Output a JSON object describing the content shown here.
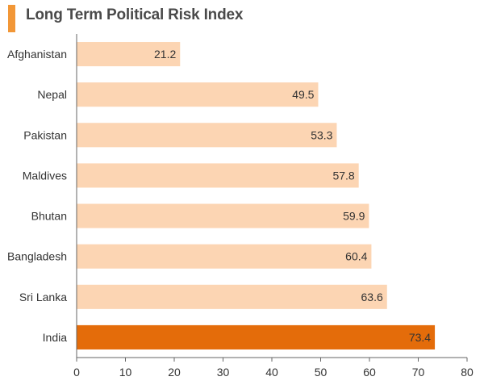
{
  "colors": {
    "accent": "#f29737",
    "bar": "#fcd5b3",
    "highlight": "#e46c0a",
    "axis": "#666666",
    "text": "#333333",
    "title": "#4a4a4a"
  },
  "chart_data": {
    "type": "bar",
    "orientation": "horizontal",
    "title": "Long Term Political Risk Index",
    "categories": [
      "Afghanistan",
      "Nepal",
      "Pakistan",
      "Maldives",
      "Bhutan",
      "Bangladesh",
      "Sri Lanka",
      "India"
    ],
    "values": [
      21.2,
      49.5,
      53.3,
      57.8,
      59.9,
      60.4,
      63.6,
      73.4
    ],
    "value_labels": [
      "21.2",
      "49.5",
      "53.3",
      "57.8",
      "59.9",
      "60.4",
      "63.6",
      "73.4"
    ],
    "highlighted": [
      "India"
    ],
    "xlim": [
      0,
      80
    ],
    "xticks": [
      0,
      10,
      20,
      30,
      40,
      50,
      60,
      70,
      80
    ],
    "xlabel": "",
    "ylabel": "",
    "grid": false,
    "legend": "none"
  }
}
